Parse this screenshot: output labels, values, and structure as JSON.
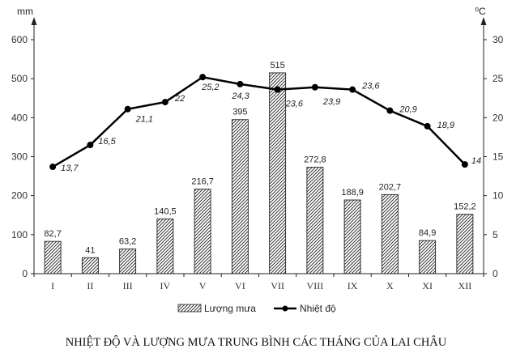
{
  "chart_data": {
    "type": "bar+line",
    "title": "NHIỆT ĐỘ VÀ LƯỢNG MƯA TRUNG BÌNH CÁC THÁNG CỦA LAI CHÂU",
    "categories": [
      "I",
      "II",
      "III",
      "IV",
      "V",
      "VI",
      "VII",
      "VIII",
      "IX",
      "X",
      "XI",
      "XII"
    ],
    "left_axis": {
      "unit": "mm",
      "ylim": [
        0,
        600
      ],
      "ticks": [
        "0",
        "100",
        "200",
        "300",
        "400",
        "500",
        "600"
      ]
    },
    "right_axis": {
      "unit": "⁰C",
      "ylim": [
        0,
        30
      ],
      "ticks": [
        "0",
        "5",
        "10",
        "15",
        "20",
        "25",
        "30"
      ]
    },
    "series": [
      {
        "name": "Lượng mưa",
        "type": "bar",
        "axis": "left",
        "pattern": "diagonal-hatch",
        "values": [
          82.7,
          41,
          63.2,
          140.5,
          216.7,
          395,
          515,
          272.8,
          188.9,
          202.7,
          84.9,
          152.2
        ],
        "labels": [
          "82,7",
          "41",
          "63,2",
          "140,5",
          "216,7",
          "395",
          "515",
          "272,8",
          "188,9",
          "202,7",
          "84,9",
          "152,2"
        ]
      },
      {
        "name": "Nhiệt độ",
        "type": "line",
        "axis": "right",
        "color": "#000000",
        "values": [
          13.7,
          16.5,
          21.1,
          22,
          25.2,
          24.3,
          23.6,
          23.9,
          23.6,
          20.9,
          18.9,
          14
        ],
        "labels": [
          "13,7",
          "16,5",
          "21,1",
          "22",
          "25,2",
          "24,3",
          "23,6",
          "23,9",
          "23,6",
          "20,9",
          "18,9",
          "14"
        ]
      }
    ],
    "grid": false,
    "legend": "bottom"
  }
}
